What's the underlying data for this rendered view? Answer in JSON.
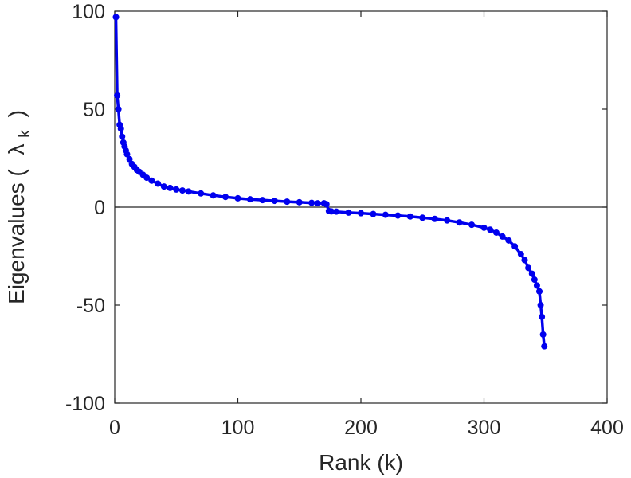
{
  "chart_data": {
    "type": "line",
    "title": "",
    "xlabel": "Rank (k)",
    "ylabel": {
      "main": "Eigenvalues (",
      "symbol": "λ",
      "subscript": "k",
      "close": ")"
    },
    "xlim": [
      0,
      400
    ],
    "ylim": [
      -100,
      100
    ],
    "xticks": [
      0,
      100,
      200,
      300,
      400
    ],
    "yticks": [
      -100,
      -50,
      0,
      50,
      100
    ],
    "xtick_labels": [
      "0",
      "100",
      "200",
      "300",
      "400"
    ],
    "ytick_labels": [
      "-100",
      "-50",
      "0",
      "50",
      "100"
    ],
    "grid": false,
    "zero_line": true,
    "markers": true,
    "series": [
      {
        "color": "#0000ee",
        "x": [
          1,
          2,
          3,
          4,
          5,
          6,
          7,
          8,
          9,
          10,
          12,
          14,
          16,
          18,
          20,
          23,
          26,
          30,
          35,
          40,
          45,
          50,
          55,
          60,
          70,
          80,
          90,
          100,
          110,
          120,
          130,
          140,
          150,
          160,
          165,
          170,
          172,
          174,
          176,
          180,
          190,
          200,
          210,
          220,
          230,
          240,
          250,
          260,
          270,
          280,
          290,
          300,
          305,
          310,
          315,
          320,
          325,
          330,
          333,
          336,
          339,
          341,
          343,
          345,
          346,
          347,
          348,
          349
        ],
        "y": [
          97,
          57,
          50,
          42,
          40,
          36,
          33,
          31,
          29,
          27,
          24.5,
          22,
          20.5,
          19,
          18,
          16.5,
          15,
          13.5,
          12,
          10.5,
          9.8,
          9,
          8.5,
          8,
          7,
          6,
          5.2,
          4.5,
          4,
          3.6,
          3.2,
          2.8,
          2.5,
          2.2,
          2,
          2,
          1.5,
          -2,
          -2.2,
          -2.3,
          -2.8,
          -3.1,
          -3.5,
          -3.9,
          -4.3,
          -4.8,
          -5.4,
          -6,
          -6.8,
          -7.8,
          -9,
          -10.5,
          -11.5,
          -13,
          -15,
          -17,
          -20,
          -24,
          -27,
          -31,
          -34,
          -37,
          -40,
          -43,
          -50,
          -56,
          -65,
          -71
        ]
      }
    ]
  }
}
